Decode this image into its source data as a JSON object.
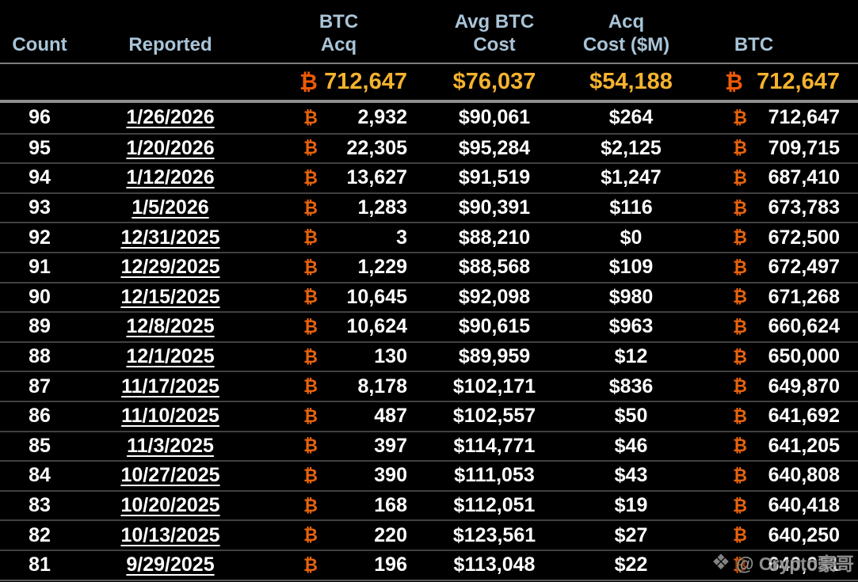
{
  "symbols": {
    "btc": "₿"
  },
  "header": {
    "columns": [
      {
        "id": "count",
        "lines": [
          "Count"
        ]
      },
      {
        "id": "reported",
        "lines": [
          "Reported"
        ]
      },
      {
        "id": "btc_acq",
        "lines": [
          "BTC",
          "Acq"
        ]
      },
      {
        "id": "avg_btc_cost",
        "lines": [
          "Avg BTC",
          "Cost"
        ]
      },
      {
        "id": "acq_cost_m",
        "lines": [
          "Acq",
          "Cost ($M)"
        ]
      },
      {
        "id": "btc",
        "lines": [
          "BTC"
        ]
      }
    ]
  },
  "totals": {
    "btc_acq": "712,647",
    "avg_btc_cost": "$76,037",
    "acq_cost_m": "$54,188",
    "btc": "712,647"
  },
  "rows": [
    {
      "count": "96",
      "reported": "1/26/2026",
      "btc_acq": "2,932",
      "avg_btc_cost": "$90,061",
      "acq_cost_m": "$264",
      "btc": "712,647"
    },
    {
      "count": "95",
      "reported": "1/20/2026",
      "btc_acq": "22,305",
      "avg_btc_cost": "$95,284",
      "acq_cost_m": "$2,125",
      "btc": "709,715"
    },
    {
      "count": "94",
      "reported": "1/12/2026",
      "btc_acq": "13,627",
      "avg_btc_cost": "$91,519",
      "acq_cost_m": "$1,247",
      "btc": "687,410"
    },
    {
      "count": "93",
      "reported": "1/5/2026",
      "btc_acq": "1,283",
      "avg_btc_cost": "$90,391",
      "acq_cost_m": "$116",
      "btc": "673,783"
    },
    {
      "count": "92",
      "reported": "12/31/2025",
      "btc_acq": "3",
      "avg_btc_cost": "$88,210",
      "acq_cost_m": "$0",
      "btc": "672,500"
    },
    {
      "count": "91",
      "reported": "12/29/2025",
      "btc_acq": "1,229",
      "avg_btc_cost": "$88,568",
      "acq_cost_m": "$109",
      "btc": "672,497"
    },
    {
      "count": "90",
      "reported": "12/15/2025",
      "btc_acq": "10,645",
      "avg_btc_cost": "$92,098",
      "acq_cost_m": "$980",
      "btc": "671,268"
    },
    {
      "count": "89",
      "reported": "12/8/2025",
      "btc_acq": "10,624",
      "avg_btc_cost": "$90,615",
      "acq_cost_m": "$963",
      "btc": "660,624"
    },
    {
      "count": "88",
      "reported": "12/1/2025",
      "btc_acq": "130",
      "avg_btc_cost": "$89,959",
      "acq_cost_m": "$12",
      "btc": "650,000"
    },
    {
      "count": "87",
      "reported": "11/17/2025",
      "btc_acq": "8,178",
      "avg_btc_cost": "$102,171",
      "acq_cost_m": "$836",
      "btc": "649,870"
    },
    {
      "count": "86",
      "reported": "11/10/2025",
      "btc_acq": "487",
      "avg_btc_cost": "$102,557",
      "acq_cost_m": "$50",
      "btc": "641,692"
    },
    {
      "count": "85",
      "reported": "11/3/2025",
      "btc_acq": "397",
      "avg_btc_cost": "$114,771",
      "acq_cost_m": "$46",
      "btc": "641,205"
    },
    {
      "count": "84",
      "reported": "10/27/2025",
      "btc_acq": "390",
      "avg_btc_cost": "$111,053",
      "acq_cost_m": "$43",
      "btc": "640,808"
    },
    {
      "count": "83",
      "reported": "10/20/2025",
      "btc_acq": "168",
      "avg_btc_cost": "$112,051",
      "acq_cost_m": "$19",
      "btc": "640,418"
    },
    {
      "count": "82",
      "reported": "10/13/2025",
      "btc_acq": "220",
      "avg_btc_cost": "$123,561",
      "acq_cost_m": "$27",
      "btc": "640,250"
    },
    {
      "count": "81",
      "reported": "9/29/2025",
      "btc_acq": "196",
      "avg_btc_cost": "$113,048",
      "acq_cost_m": "$22",
      "btc": "640,031"
    }
  ],
  "watermark": {
    "icon": "binance-diamond-icon",
    "icon_glyph": "❖",
    "text": "@ Crypto豪哥"
  },
  "colors": {
    "background": "#000000",
    "header_text": "#a9c4d8",
    "totals_text": "#f5b32e",
    "btc_symbol_orange": "#e9630c",
    "row_text": "#ffffff",
    "row_separator": "#414141",
    "header_rule": "#7d7d7d",
    "watermark_text": "#9b9b9b"
  }
}
